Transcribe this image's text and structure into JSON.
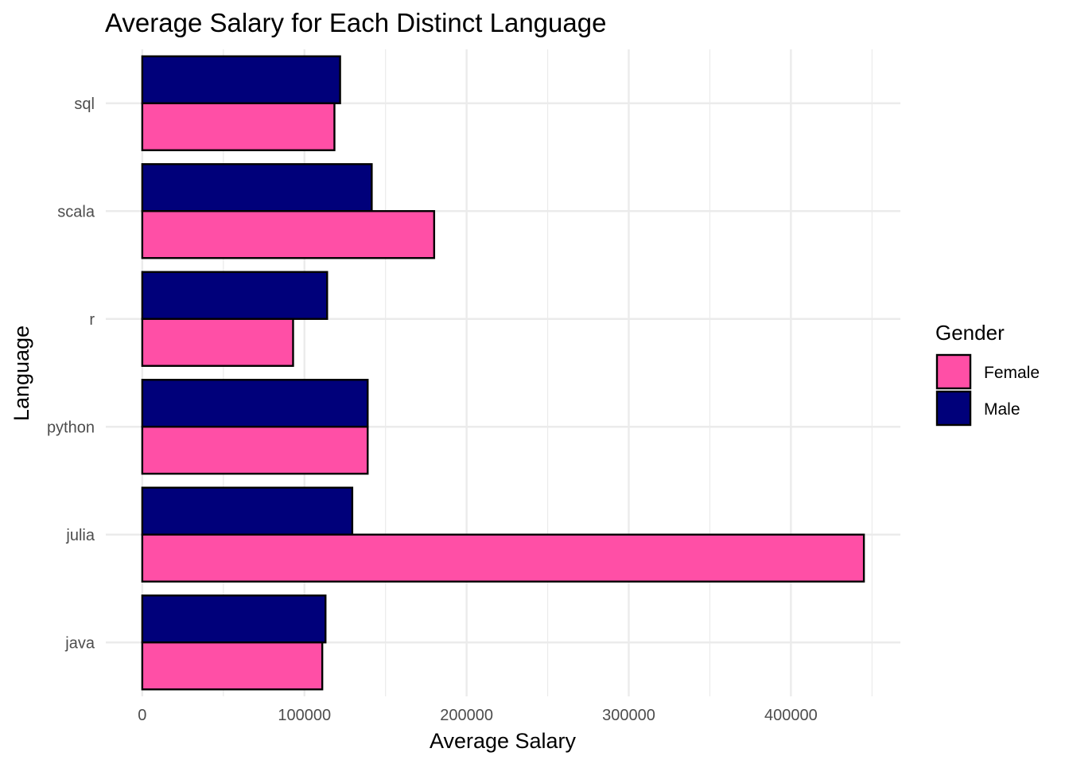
{
  "chart_data": {
    "type": "bar",
    "orientation": "horizontal",
    "title": "Average Salary for Each Distinct Language",
    "xlabel": "Average Salary",
    "ylabel": "Language",
    "categories": [
      "java",
      "julia",
      "python",
      "r",
      "scala",
      "sql"
    ],
    "series": [
      {
        "name": "Female",
        "color": "#FF4FA6",
        "values": [
          111000,
          445000,
          139000,
          93000,
          180000,
          118500
        ]
      },
      {
        "name": "Male",
        "color": "#00007A",
        "values": [
          113000,
          129500,
          139000,
          114000,
          141500,
          122000
        ]
      }
    ],
    "xlim": [
      -22500,
      467500
    ],
    "xticks": [
      0,
      100000,
      200000,
      300000,
      400000
    ],
    "xtick_labels": [
      "0",
      "100000",
      "200000",
      "300000",
      "400000"
    ],
    "grid": true,
    "legend": {
      "title": "Gender",
      "position": "right",
      "entries": [
        "Female",
        "Male"
      ]
    }
  }
}
